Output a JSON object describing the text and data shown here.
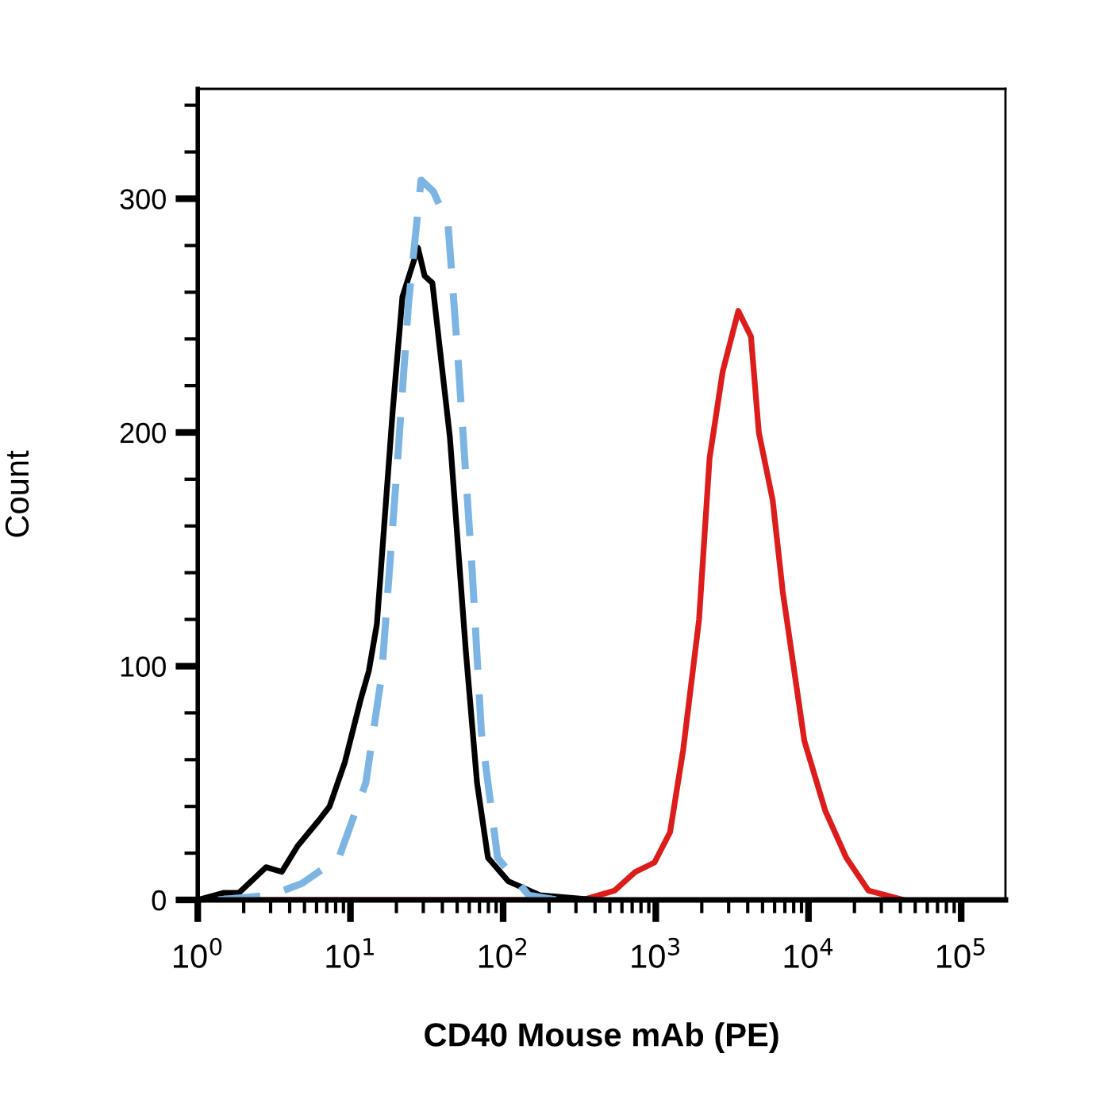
{
  "chart_data": {
    "type": "line",
    "xlabel": "CD40 Mouse mAb (PE)",
    "ylabel": "Count",
    "log": "x",
    "xlim": [
      1,
      195000
    ],
    "ylim": [
      0,
      347
    ],
    "xticks": [
      {
        "value": 1,
        "label": "10$^{0}$"
      },
      {
        "value": 10,
        "label": "10$^{1}$"
      },
      {
        "value": 100,
        "label": "10$^{2}$"
      },
      {
        "value": 1000,
        "label": "10$^{3}$"
      },
      {
        "value": 10000,
        "label": "10$^{4}$"
      },
      {
        "value": 100000,
        "label": "10$^{5}$"
      }
    ],
    "yticks": [
      0,
      100,
      200,
      300
    ],
    "marker": "none",
    "series": [
      {
        "color": "#dd1c1c",
        "line_style": "solid",
        "x": [
          1,
          300,
          333,
          537,
          735,
          980,
          1240,
          1510,
          1920,
          2250,
          2740,
          3470,
          4200,
          4730,
          5830,
          6780,
          9400,
          12900,
          17700,
          24700,
          42000
        ],
        "values": [
          0,
          0,
          0,
          4,
          12,
          16,
          29,
          64,
          120,
          189,
          226,
          252,
          241,
          200,
          171,
          132,
          68,
          38,
          18,
          4,
          0
        ]
      },
      {
        "color": "#000000",
        "line_style": "solid",
        "x": [
          1,
          1.47,
          1.86,
          2.8,
          3.55,
          4.5,
          6.2,
          7.3,
          9.2,
          11.7,
          13.2,
          14.9,
          18.9,
          21.9,
          27.7,
          30.6,
          34.4,
          44.8,
          56.9,
          67.5,
          79.6,
          108,
          174,
          405
        ],
        "values": [
          0,
          3,
          3,
          14,
          12,
          23,
          34,
          40,
          59,
          86,
          98,
          118,
          209,
          258,
          279,
          267,
          264,
          198,
          107,
          50,
          18,
          8,
          2,
          0
        ]
      },
      {
        "color": "#7cb5e4",
        "line_style": "dashed",
        "x": [
          1.36,
          3.0,
          4.8,
          8.4,
          12.6,
          16,
          20.3,
          24,
          29,
          35,
          43.6,
          50.6,
          62.7,
          72,
          92,
          147,
          222
        ],
        "values": [
          0,
          2,
          7,
          18,
          50,
          96,
          187,
          255,
          308,
          303,
          289,
          232,
          141,
          72,
          18,
          2,
          0
        ]
      }
    ]
  }
}
